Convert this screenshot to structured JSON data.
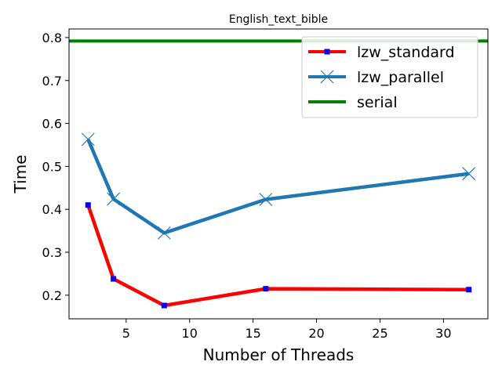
{
  "chart_data": {
    "type": "line",
    "title": "English_text_bible",
    "xlabel": "Number of Threads",
    "ylabel": "Time",
    "xlim": [
      0.5,
      33.5
    ],
    "ylim": [
      0.145,
      0.82
    ],
    "xticks": [
      5,
      10,
      15,
      20,
      25,
      30
    ],
    "yticks": [
      0.2,
      0.3,
      0.4,
      0.5,
      0.6,
      0.7,
      0.8
    ],
    "x": [
      2,
      4,
      8,
      16,
      32
    ],
    "grid": false,
    "legend_position": "top-right",
    "series": [
      {
        "name": "lzw_standard",
        "values": [
          0.41,
          0.238,
          0.176,
          0.215,
          0.213
        ],
        "color": "#ff0000",
        "marker": "square",
        "marker_color": "#0000ff"
      },
      {
        "name": "lzw_parallel",
        "values": [
          0.563,
          0.424,
          0.345,
          0.423,
          0.483
        ],
        "color": "#1f77b4",
        "marker": "x",
        "marker_color": "#1f77b4"
      },
      {
        "name": "serial",
        "constant": 0.792,
        "color": "#008000",
        "marker": "none"
      }
    ]
  }
}
